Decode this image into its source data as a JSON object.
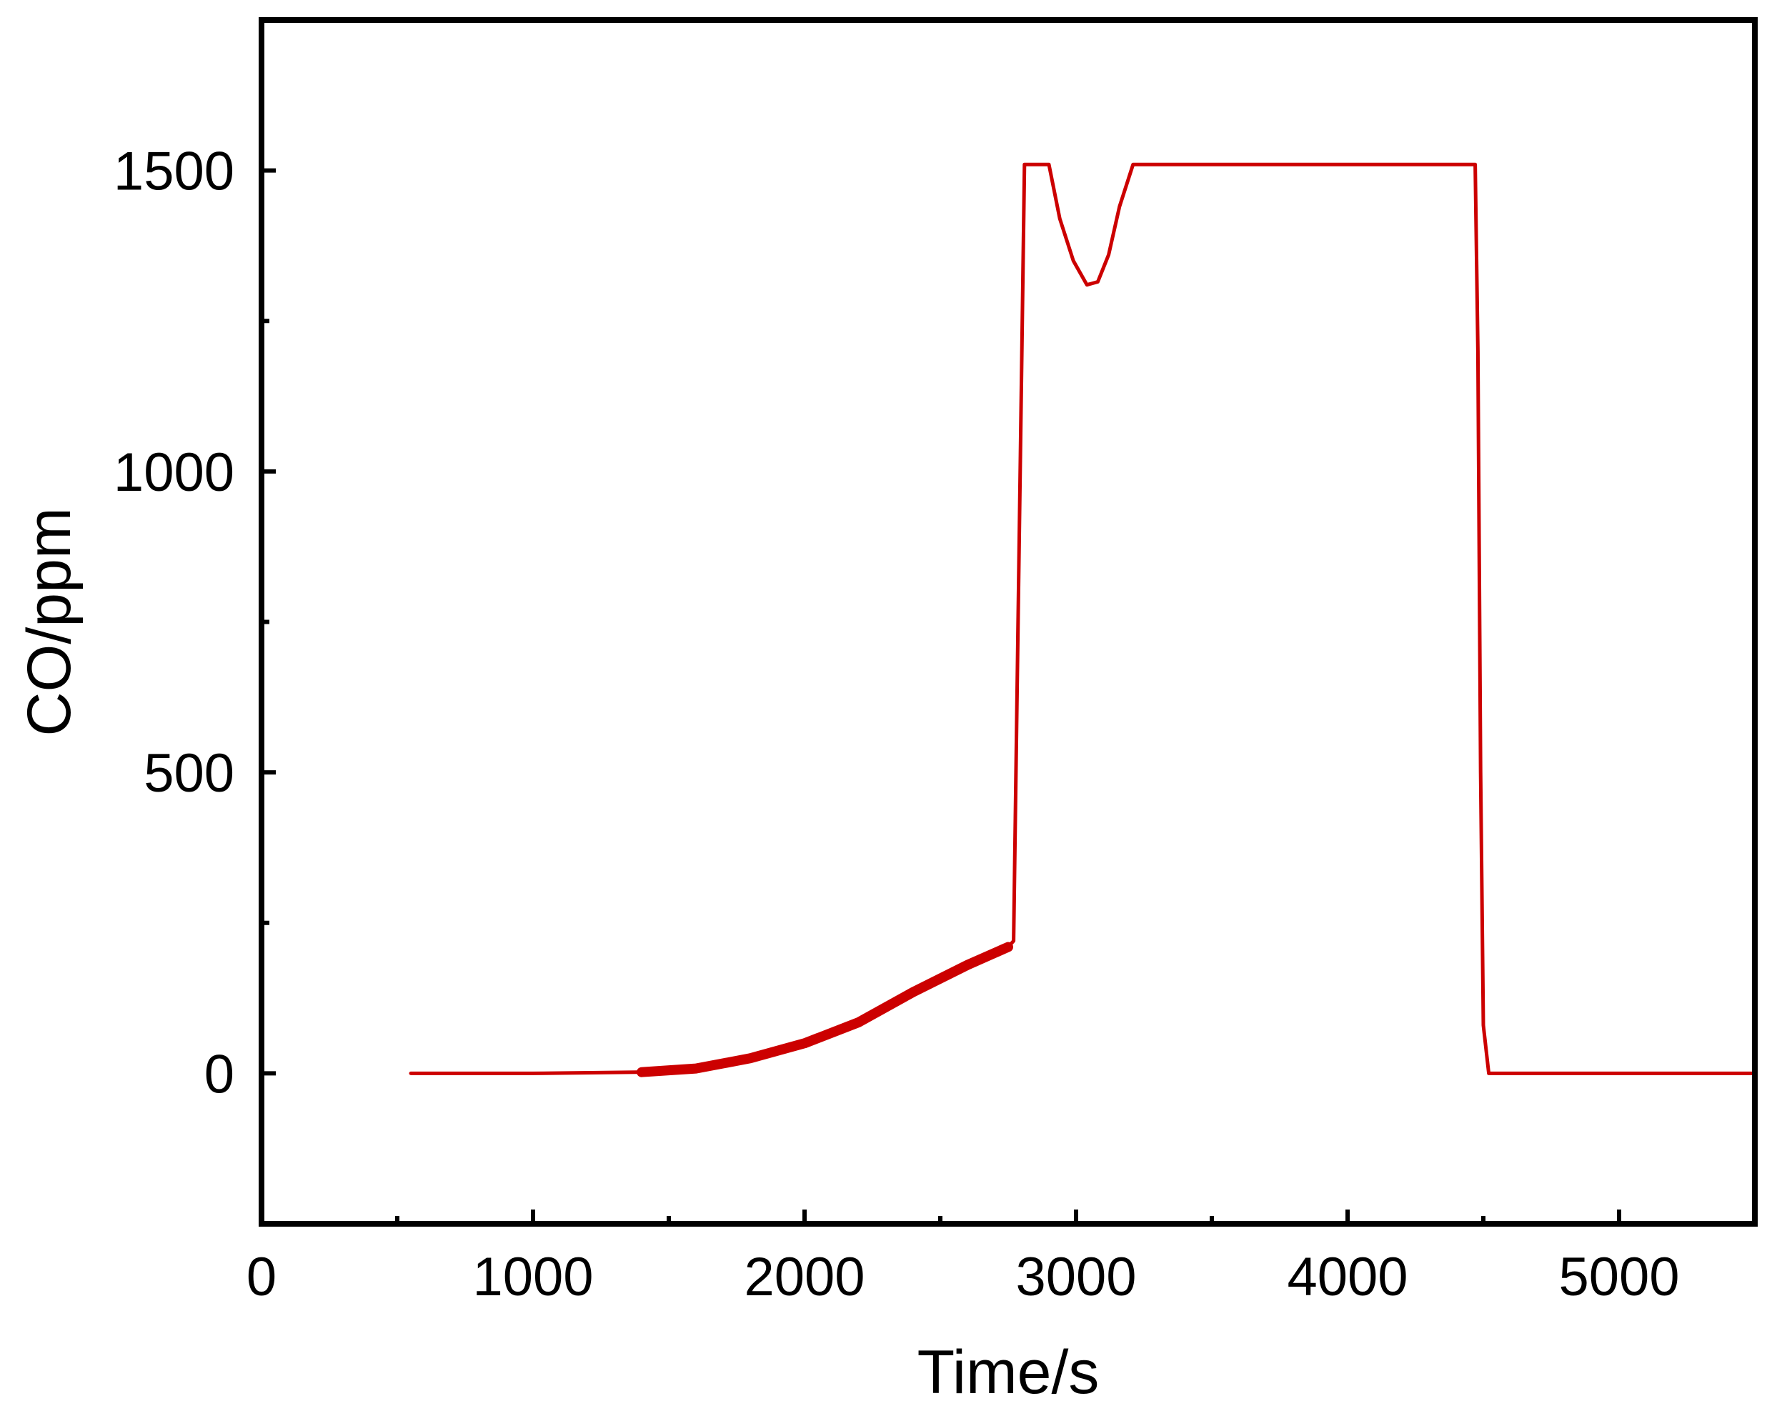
{
  "chart_data": {
    "type": "line",
    "title": "",
    "xlabel": "Time/s",
    "ylabel": "CO/ppm",
    "xlim": [
      0,
      5500
    ],
    "ylim": [
      -250,
      1750
    ],
    "x_ticks": [
      0,
      1000,
      2000,
      3000,
      4000,
      5000
    ],
    "x_tick_labels": [
      "0",
      "1000",
      "2000",
      "3000",
      "4000",
      "5000"
    ],
    "y_ticks": [
      0,
      500,
      1000,
      1500
    ],
    "y_tick_labels": [
      "0",
      "500",
      "1000",
      "1500"
    ],
    "x_minor_ticks": [
      500,
      1500,
      2500,
      3500,
      4500
    ],
    "y_minor_ticks": [
      250,
      750,
      1250
    ],
    "grid": false,
    "legend": "none",
    "colors": {
      "series": "#cc0000",
      "axis": "#000000"
    },
    "series": [
      {
        "name": "",
        "x": [
          550,
          1000,
          1400,
          1600,
          1800,
          2000,
          2200,
          2400,
          2600,
          2750,
          2770,
          2810,
          2830,
          2900,
          2940,
          2990,
          3040,
          3080,
          3120,
          3160,
          3210,
          3500,
          4000,
          4470,
          4480,
          4490,
          4500,
          4520,
          5000,
          5500
        ],
        "y": [
          0,
          0,
          2,
          8,
          25,
          50,
          85,
          135,
          180,
          210,
          220,
          1510,
          1510,
          1510,
          1420,
          1350,
          1310,
          1315,
          1360,
          1440,
          1510,
          1510,
          1510,
          1510,
          1200,
          500,
          80,
          0,
          0,
          0
        ]
      }
    ]
  }
}
